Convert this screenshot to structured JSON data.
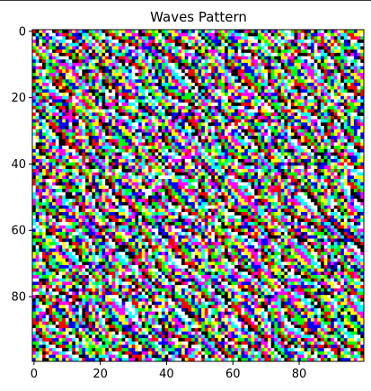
{
  "chart_data": {
    "type": "heatmap",
    "title": "Waves Pattern",
    "xlabel": "",
    "ylabel": "",
    "grid": false,
    "legend": "none",
    "shape": [
      100,
      100
    ],
    "x_range": [
      0,
      99
    ],
    "y_range": [
      0,
      99
    ],
    "y_inverted": true,
    "x_ticks": [
      0,
      20,
      40,
      60,
      80
    ],
    "y_ticks": [
      0,
      20,
      40,
      60,
      80
    ],
    "palette": [
      "#000000",
      "#ff0000",
      "#00ff00",
      "#0000ff",
      "#ffff00",
      "#ff00ff",
      "#00ffff",
      "#ffffff"
    ],
    "pattern": "diagonal wave bands of 8 colors, running from lower-left to upper-right"
  }
}
